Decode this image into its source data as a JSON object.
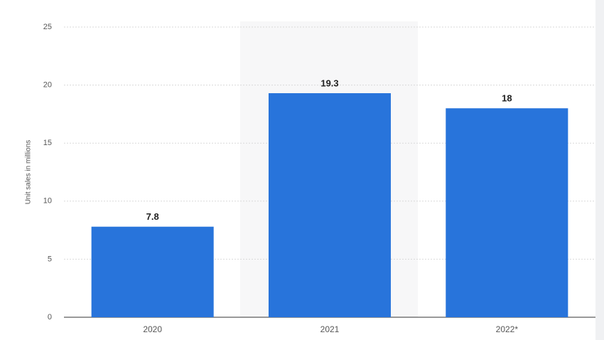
{
  "chart_data": {
    "type": "bar",
    "y_label": "Unit sales in millions",
    "categories": [
      "2020",
      "2021",
      "2022*"
    ],
    "values": [
      7.8,
      19.3,
      18
    ],
    "color": "#2874db",
    "ylim": [
      0,
      25
    ],
    "yticks": [
      0,
      5,
      10,
      15,
      20,
      25
    ],
    "grid": true
  }
}
